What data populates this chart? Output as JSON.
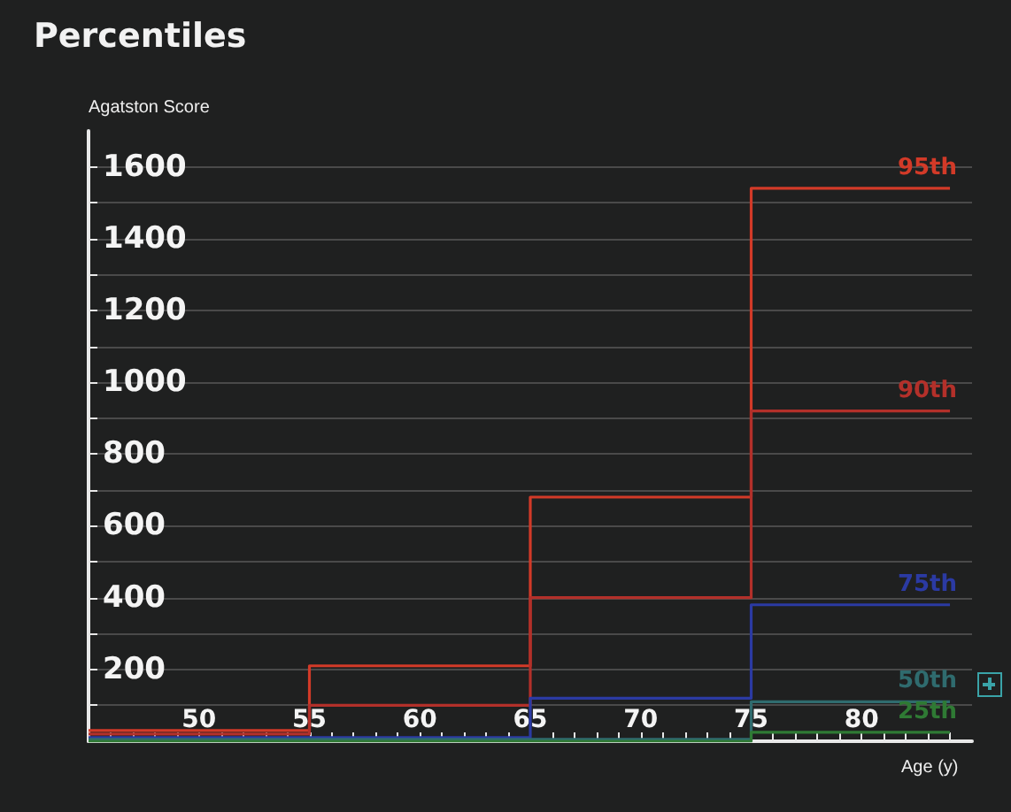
{
  "chart_data": {
    "type": "step",
    "title": "Percentiles",
    "xlabel": "Age (y)",
    "ylabel": "Agatston Score",
    "x": [
      45,
      55,
      65,
      75,
      84
    ],
    "series": [
      {
        "name": "95th",
        "color": "#d23a28",
        "values": [
          30,
          210,
          680,
          1540,
          1540
        ]
      },
      {
        "name": "90th",
        "color": "#b3302a",
        "values": [
          20,
          100,
          400,
          920,
          920
        ]
      },
      {
        "name": "75th",
        "color": "#2b3aa3",
        "values": [
          10,
          10,
          120,
          380,
          380
        ]
      },
      {
        "name": "50th",
        "color": "#2f6b6e",
        "values": [
          5,
          5,
          5,
          110,
          110
        ]
      },
      {
        "name": "25th",
        "color": "#2f7a34",
        "values": [
          0,
          0,
          0,
          25,
          25
        ]
      }
    ],
    "xlim": [
      45,
      85
    ],
    "xticks": [
      {
        "value": 46,
        "label": null
      },
      {
        "value": 47,
        "label": null
      },
      {
        "value": 48,
        "label": null
      },
      {
        "value": 49,
        "label": null
      },
      50,
      {
        "value": 51,
        "label": null
      },
      {
        "value": 52,
        "label": null
      },
      {
        "value": 53,
        "label": null
      },
      {
        "value": 54,
        "label": null
      },
      55,
      {
        "value": 56,
        "label": null
      },
      {
        "value": 57,
        "label": null
      },
      {
        "value": 58,
        "label": null
      },
      {
        "value": 59,
        "label": null
      },
      60,
      {
        "value": 61,
        "label": null
      },
      {
        "value": 62,
        "label": null
      },
      {
        "value": 63,
        "label": null
      },
      {
        "value": 64,
        "label": null
      },
      65,
      {
        "value": 66,
        "label": null
      },
      {
        "value": 67,
        "label": null
      },
      {
        "value": 68,
        "label": null
      },
      {
        "value": 69,
        "label": null
      },
      70,
      {
        "value": 71,
        "label": null
      },
      {
        "value": 72,
        "label": null
      },
      {
        "value": 73,
        "label": null
      },
      {
        "value": 74,
        "label": null
      },
      75,
      {
        "value": 76,
        "label": null
      },
      {
        "value": 77,
        "label": null
      },
      {
        "value": 78,
        "label": null
      },
      {
        "value": 79,
        "label": null
      },
      80,
      {
        "value": 81,
        "label": null
      },
      {
        "value": 82,
        "label": null
      },
      {
        "value": 83,
        "label": null
      },
      {
        "value": 84,
        "label": null
      }
    ],
    "ylim": [
      0,
      1700
    ],
    "yticks": [
      {
        "value": 100,
        "label": null
      },
      200,
      {
        "value": 300,
        "label": null
      },
      400,
      {
        "value": 500,
        "label": null
      },
      600,
      {
        "value": 700,
        "label": null
      },
      800,
      {
        "value": 900,
        "label": null
      },
      1000,
      {
        "value": 1100,
        "label": null
      },
      1200,
      {
        "value": 1300,
        "label": null
      },
      1400,
      {
        "value": 1500,
        "label": null
      },
      1600
    ],
    "grid": "y",
    "legend": false,
    "marker": "none",
    "line_style": "solid"
  }
}
